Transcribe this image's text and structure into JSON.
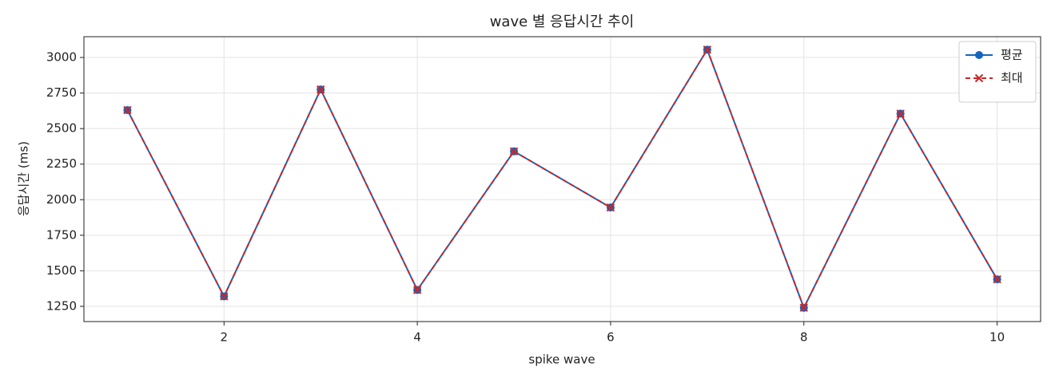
{
  "chart_data": {
    "type": "line",
    "title": "wave 별 응답시간 추이",
    "xlabel": "spike wave",
    "ylabel": "응답시간 (ms)",
    "x": [
      1,
      2,
      3,
      4,
      5,
      6,
      7,
      8,
      9,
      10
    ],
    "series": [
      {
        "name": "평균",
        "color": "#1565c0",
        "marker": "circle",
        "dash": false,
        "values": [
          2630,
          1320,
          2775,
          1365,
          2340,
          1945,
          3055,
          1240,
          2605,
          1440
        ]
      },
      {
        "name": "최대",
        "color": "#c62828",
        "marker": "x",
        "dash": true,
        "values": [
          2630,
          1320,
          2775,
          1365,
          2340,
          1945,
          3055,
          1240,
          2605,
          1440
        ]
      }
    ],
    "xlim": [
      0.55,
      10.45
    ],
    "xticks": [
      2,
      4,
      6,
      8,
      10
    ],
    "ylim": [
      1143,
      3146
    ],
    "yticks": [
      1250,
      1500,
      1750,
      2000,
      2250,
      2500,
      2750,
      3000
    ],
    "grid": true,
    "legend": "upper right"
  }
}
